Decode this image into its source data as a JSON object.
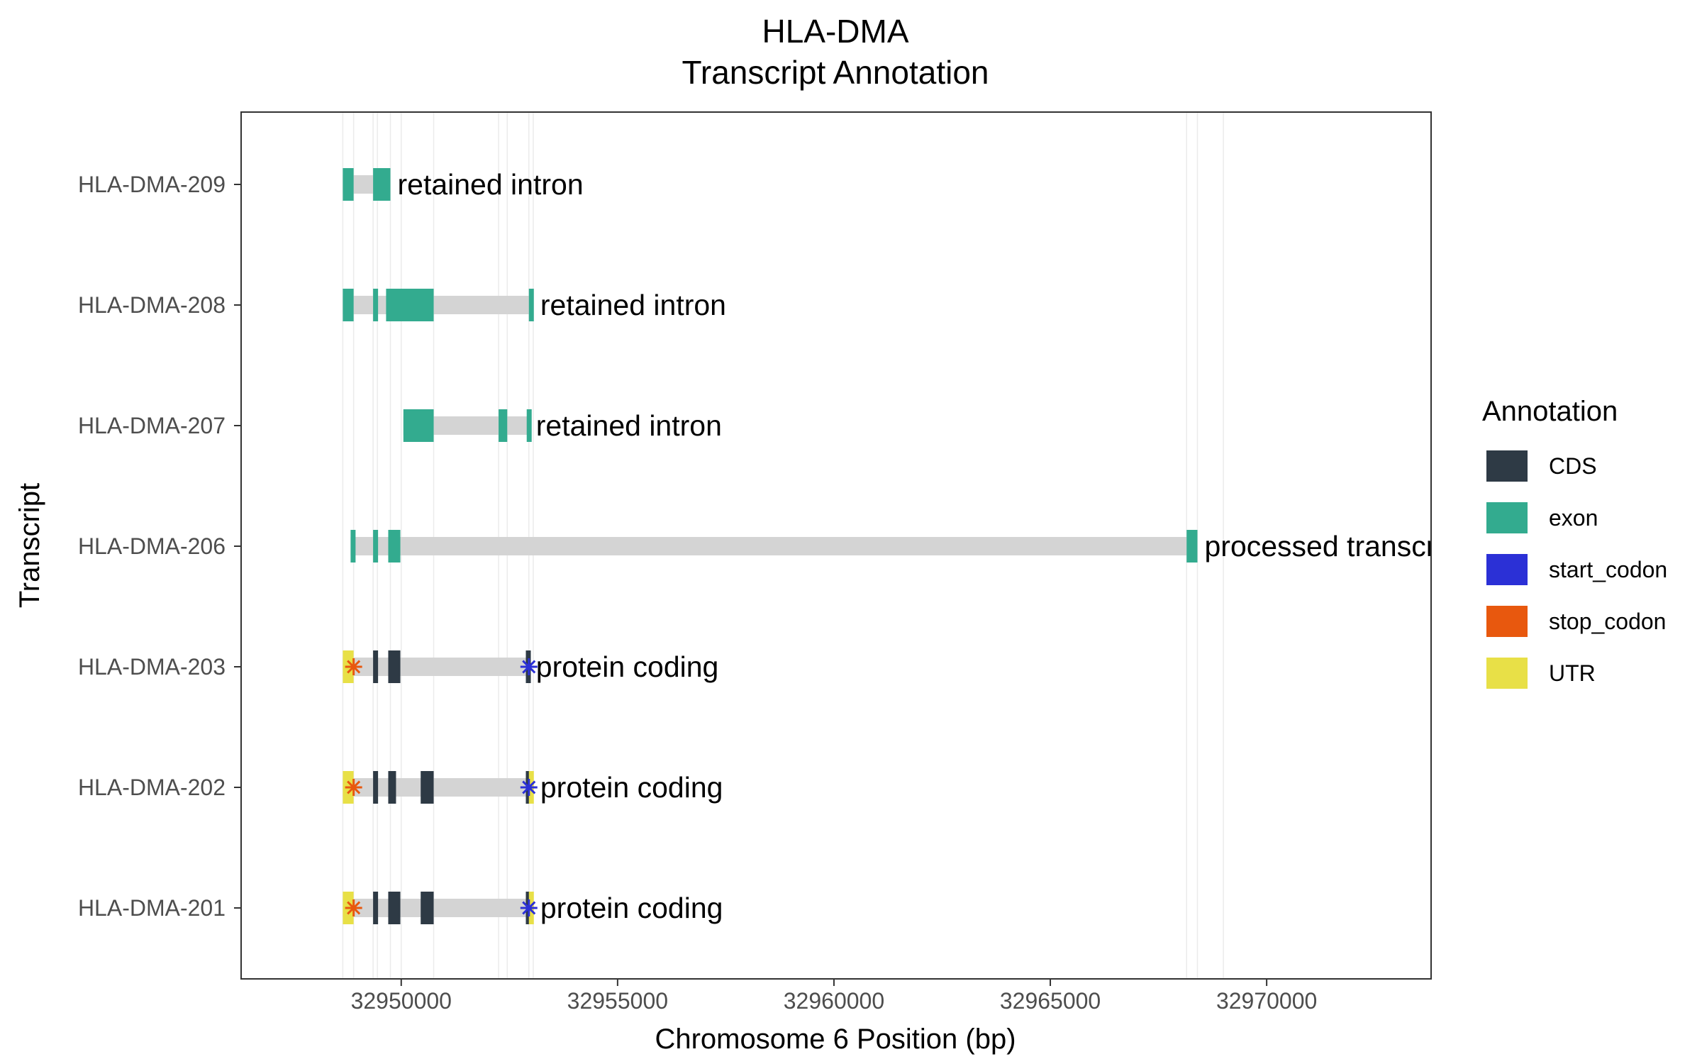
{
  "chart_data": {
    "type": "gene_transcript_annotation",
    "title": "HLA-DMA",
    "subtitle": "Transcript Annotation",
    "xlabel": "Chromosome 6 Position (bp)",
    "ylabel": "Transcript",
    "xlim": [
      32946300,
      32973800
    ],
    "x_ticks": [
      32950000,
      32955000,
      32960000,
      32965000,
      32970000
    ],
    "x_tick_labels": [
      "32950000",
      "32955000",
      "32960000",
      "32965000",
      "32970000"
    ],
    "legend": {
      "title": "Annotation",
      "placement": "right",
      "entries": [
        {
          "key": "CDS",
          "label": "CDS",
          "color": "#2e3a45"
        },
        {
          "key": "exon",
          "label": "exon",
          "color": "#33ab8f"
        },
        {
          "key": "start_codon",
          "label": "start_codon",
          "color": "#2b30d6"
        },
        {
          "key": "stop_codon",
          "label": "stop_codon",
          "color": "#e8580e"
        },
        {
          "key": "UTR",
          "label": "UTR",
          "color": "#e8e047"
        }
      ]
    },
    "intron_color": "#d4d4d4",
    "grid_line_positions": [
      32948650,
      32948900,
      32949350,
      32949450,
      32949750,
      32950000,
      32950750,
      32952250,
      32952450,
      32952950,
      32953050,
      32968150,
      32968400,
      32969000
    ],
    "transcripts": [
      {
        "name": "HLA-DMA-209",
        "biotype": "retained intron",
        "start": 32948650,
        "end": 32949750,
        "features": [
          {
            "type": "exon",
            "start": 32948650,
            "end": 32948900
          },
          {
            "type": "exon",
            "start": 32949350,
            "end": 32949750
          }
        ]
      },
      {
        "name": "HLA-DMA-208",
        "biotype": "retained intron",
        "start": 32948650,
        "end": 32953050,
        "features": [
          {
            "type": "exon",
            "start": 32948650,
            "end": 32948900
          },
          {
            "type": "exon",
            "start": 32949350,
            "end": 32949450
          },
          {
            "type": "exon",
            "start": 32949650,
            "end": 32950750
          },
          {
            "type": "exon",
            "start": 32952950,
            "end": 32953050
          }
        ]
      },
      {
        "name": "HLA-DMA-207",
        "biotype": "retained intron",
        "start": 32950050,
        "end": 32952950,
        "features": [
          {
            "type": "exon",
            "start": 32950050,
            "end": 32950750
          },
          {
            "type": "exon",
            "start": 32952250,
            "end": 32952450
          },
          {
            "type": "exon",
            "start": 32952900,
            "end": 32952950
          }
        ]
      },
      {
        "name": "HLA-DMA-206",
        "biotype": "processed transcr",
        "start": 32948830,
        "end": 32968400,
        "features": [
          {
            "type": "exon",
            "start": 32948830,
            "end": 32948930
          },
          {
            "type": "exon",
            "start": 32949350,
            "end": 32949450
          },
          {
            "type": "exon",
            "start": 32949700,
            "end": 32949980
          },
          {
            "type": "exon",
            "start": 32968150,
            "end": 32968400
          }
        ]
      },
      {
        "name": "HLA-DMA-203",
        "biotype": "protein coding",
        "start": 32948650,
        "end": 32952950,
        "features": [
          {
            "type": "UTR",
            "start": 32948650,
            "end": 32948900
          },
          {
            "type": "CDS",
            "start": 32949350,
            "end": 32949450
          },
          {
            "type": "CDS",
            "start": 32949700,
            "end": 32949980
          },
          {
            "type": "CDS",
            "start": 32952880,
            "end": 32952950
          }
        ],
        "markers": [
          {
            "type": "stop_codon",
            "pos": 32948900
          },
          {
            "type": "start_codon",
            "pos": 32952950
          }
        ]
      },
      {
        "name": "HLA-DMA-202",
        "biotype": "protein coding",
        "start": 32948650,
        "end": 32953050,
        "features": [
          {
            "type": "UTR",
            "start": 32948650,
            "end": 32948900
          },
          {
            "type": "CDS",
            "start": 32949350,
            "end": 32949450
          },
          {
            "type": "CDS",
            "start": 32949700,
            "end": 32949880
          },
          {
            "type": "CDS",
            "start": 32950450,
            "end": 32950750
          },
          {
            "type": "CDS",
            "start": 32952880,
            "end": 32952950
          },
          {
            "type": "UTR",
            "start": 32952950,
            "end": 32953050
          }
        ],
        "markers": [
          {
            "type": "stop_codon",
            "pos": 32948900
          },
          {
            "type": "start_codon",
            "pos": 32952950
          }
        ]
      },
      {
        "name": "HLA-DMA-201",
        "biotype": "protein coding",
        "start": 32948650,
        "end": 32953050,
        "features": [
          {
            "type": "UTR",
            "start": 32948650,
            "end": 32948900
          },
          {
            "type": "CDS",
            "start": 32949350,
            "end": 32949450
          },
          {
            "type": "CDS",
            "start": 32949700,
            "end": 32949980
          },
          {
            "type": "CDS",
            "start": 32950450,
            "end": 32950750
          },
          {
            "type": "CDS",
            "start": 32952880,
            "end": 32952950
          },
          {
            "type": "UTR",
            "start": 32952950,
            "end": 32953050
          }
        ],
        "markers": [
          {
            "type": "stop_codon",
            "pos": 32948900
          },
          {
            "type": "start_codon",
            "pos": 32952950
          }
        ]
      }
    ]
  }
}
